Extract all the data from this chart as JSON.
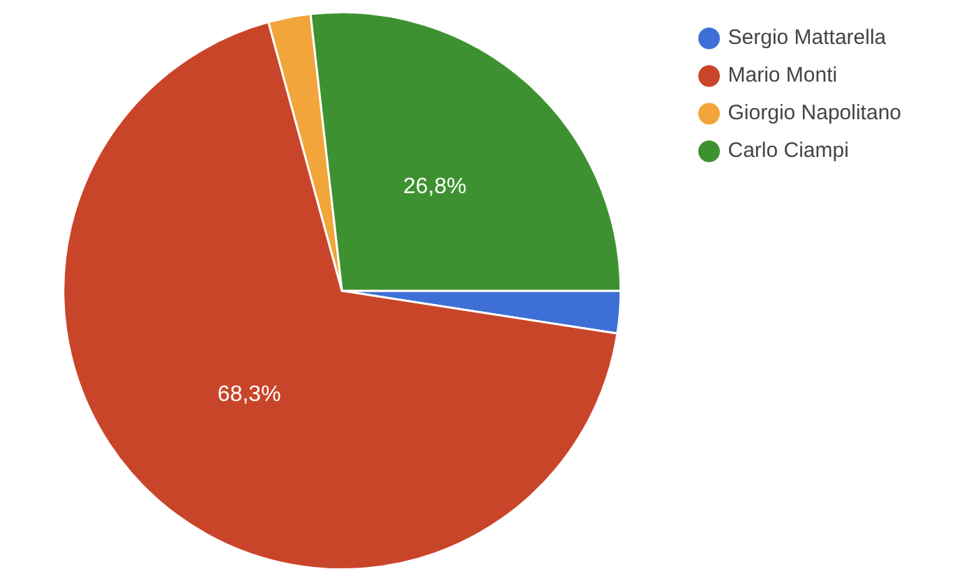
{
  "chart_data": {
    "type": "pie",
    "categories": [
      "Sergio Mattarella",
      "Mario Monti",
      "Giorgio Napolitano",
      "Carlo Ciampi"
    ],
    "values": [
      2.45,
      68.3,
      2.45,
      26.8
    ],
    "colors": [
      "#3d6fd6",
      "#c9452a",
      "#f2a53a",
      "#3e9130"
    ],
    "value_labels": [
      null,
      "68,3%",
      null,
      "26,8%"
    ],
    "legend": "top right"
  }
}
